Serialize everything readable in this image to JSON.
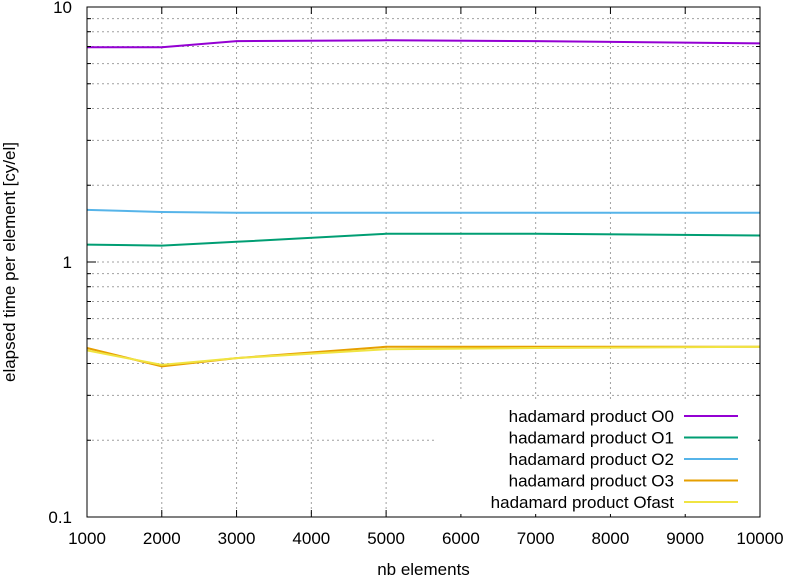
{
  "chart_data": {
    "type": "line",
    "title": "",
    "xlabel": "nb elements",
    "ylabel": "elapsed time per element [cy/el]",
    "xlim": [
      1000,
      10000
    ],
    "ylim": [
      0.1,
      10
    ],
    "yscale": "log",
    "grid": true,
    "legend_position": "bottom-right",
    "x_ticks": [
      1000,
      2000,
      3000,
      4000,
      5000,
      6000,
      7000,
      8000,
      9000,
      10000
    ],
    "x_tick_labels": [
      "1000",
      "2000",
      "3000",
      "4000",
      "5000",
      "6000",
      "7000",
      "8000",
      "9000",
      "10000"
    ],
    "y_ticks": [
      0.1,
      1,
      10
    ],
    "y_tick_labels": [
      "0.1",
      "1",
      "10"
    ],
    "x": [
      1000,
      2000,
      3000,
      5000,
      7000,
      10000
    ],
    "series": [
      {
        "name": "hadamard product O0",
        "color": "#9400d3",
        "values": [
          6.95,
          6.95,
          7.35,
          7.4,
          7.35,
          7.2
        ]
      },
      {
        "name": "hadamard product O1",
        "color": "#009e73",
        "values": [
          1.17,
          1.16,
          1.2,
          1.29,
          1.29,
          1.27
        ]
      },
      {
        "name": "hadamard product O2",
        "color": "#56b4e9",
        "values": [
          1.6,
          1.57,
          1.56,
          1.56,
          1.56,
          1.56
        ]
      },
      {
        "name": "hadamard product O3",
        "color": "#e69f00",
        "values": [
          0.46,
          0.39,
          0.42,
          0.465,
          0.465,
          0.465
        ]
      },
      {
        "name": "hadamard product Ofast",
        "color": "#f0e442",
        "values": [
          0.45,
          0.395,
          0.42,
          0.455,
          0.46,
          0.465
        ]
      }
    ]
  }
}
